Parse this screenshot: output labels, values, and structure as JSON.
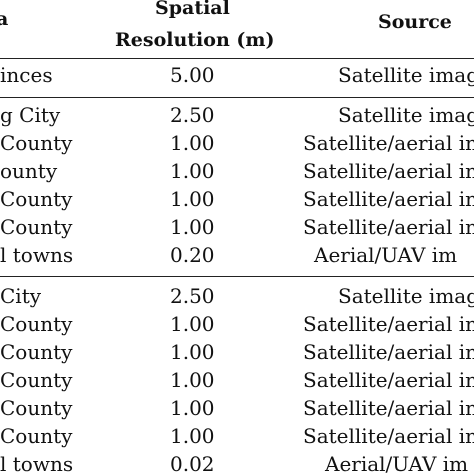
{
  "table": {
    "headers": {
      "area": "a",
      "resolution_line1": "Spatial",
      "resolution_line2": "Resolution (m)",
      "source": "Source"
    },
    "groups": [
      {
        "rows": [
          {
            "area": "inces",
            "resolution": "5.00",
            "source": "Satellite imag"
          }
        ]
      },
      {
        "rows": [
          {
            "area": "g City",
            "resolution": "2.50",
            "source": "Satellite imag"
          },
          {
            "area": "County",
            "resolution": "1.00",
            "source": "Satellite/aerial in"
          },
          {
            "area": "ounty",
            "resolution": "1.00",
            "source": "Satellite/aerial in"
          },
          {
            "area": "County",
            "resolution": "1.00",
            "source": "Satellite/aerial in"
          },
          {
            "area": "County",
            "resolution": "1.00",
            "source": "Satellite/aerial in"
          },
          {
            "area": "l towns",
            "resolution": "0.20",
            "source": "Aerial/UAV im"
          }
        ]
      },
      {
        "rows": [
          {
            "area": "City",
            "resolution": "2.50",
            "source": "Satellite imag"
          },
          {
            "area": "County",
            "resolution": "1.00",
            "source": "Satellite/aerial in"
          },
          {
            "area": "County",
            "resolution": "1.00",
            "source": "Satellite/aerial in"
          },
          {
            "area": "County",
            "resolution": "1.00",
            "source": "Satellite/aerial in"
          },
          {
            "area": "County",
            "resolution": "1.00",
            "source": "Satellite/aerial in"
          },
          {
            "area": "County",
            "resolution": "1.00",
            "source": "Satellite/aerial in"
          },
          {
            "area": "l towns",
            "resolution": "0.02",
            "source": "Aerial/UAV im"
          }
        ]
      }
    ]
  }
}
